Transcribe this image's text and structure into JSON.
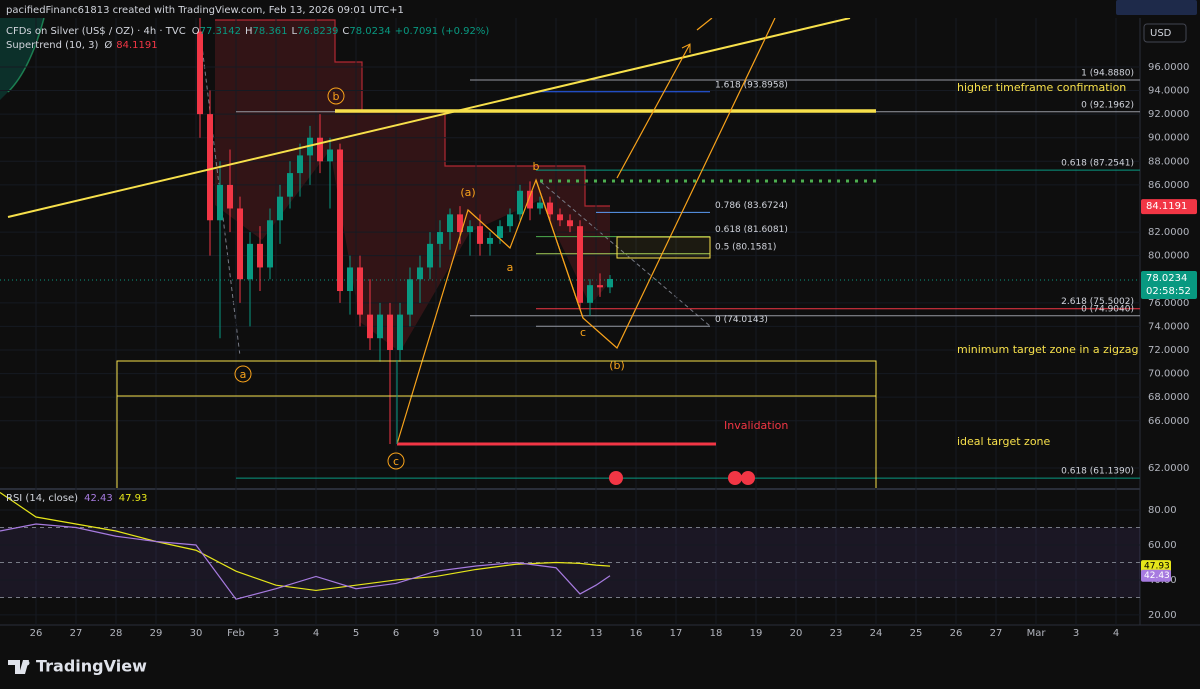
{
  "chart_data": {
    "type": "candlestick",
    "title": "pacifiedFinanc61813 created with TradingView.com, Feb 13, 2026 09:01 UTC+1",
    "symbol": "CFDs on Silver (US$ / OZ) · 4h · TVC",
    "ohlc_keys": [
      "O",
      "H",
      "L",
      "C"
    ],
    "change": "+0.7091 (+0.92%)",
    "currency": "USD",
    "supertrend": {
      "name": "Supertrend (10, 3)",
      "symbol": "Ø",
      "value": 84.1191,
      "value_label": "84.1191",
      "color": "#f23645"
    },
    "countdown": "02:58:52",
    "low": [
      90,
      80,
      73,
      82,
      76,
      74,
      77,
      78,
      81,
      84,
      85,
      86,
      87,
      84,
      76,
      75,
      74,
      72,
      71,
      64.035,
      71,
      74,
      76,
      78,
      79,
      80.5,
      81,
      80,
      80,
      80,
      81,
      82,
      83,
      83,
      83.5,
      83,
      82.5,
      82,
      75.5,
      74.9,
      76.5,
      76.8239
    ],
    "up_color": "#089981",
    "down_color": "#f23645",
    "x": [
      4.1,
      4.35,
      4.6,
      4.85,
      5.1,
      5.35,
      5.6,
      5.85,
      6.1,
      6.35,
      6.6,
      6.85,
      7.1,
      7.35,
      7.6,
      7.85,
      8.1,
      8.35,
      8.6,
      8.85,
      9.1,
      9.35,
      9.6,
      9.85,
      10.1,
      10.35,
      10.6,
      10.85,
      11.1,
      11.35,
      11.6,
      11.85,
      12.1,
      12.35,
      12.6,
      12.85,
      13.1,
      13.35,
      13.6,
      13.85,
      14.1,
      14.35
    ],
    "open": [
      99,
      92,
      83,
      86,
      84,
      78,
      81,
      79,
      83,
      85,
      87,
      88.5,
      90,
      88,
      89,
      77,
      79,
      75,
      73,
      75,
      72,
      75,
      78,
      79,
      81,
      82,
      83.5,
      82,
      82.5,
      81,
      81.5,
      82.5,
      83.5,
      85.5,
      84,
      84.5,
      83.5,
      83,
      82.5,
      76,
      77.5,
      77.3142
    ],
    "high": [
      101,
      94,
      88,
      89,
      85,
      82,
      82.5,
      84,
      86,
      88,
      89.5,
      91,
      92,
      90,
      89.5,
      80,
      80,
      78,
      76,
      76,
      76,
      79,
      80,
      82,
      83,
      84,
      84.2,
      83,
      83.5,
      82,
      83,
      84,
      86,
      86.3,
      85,
      85,
      84,
      83.5,
      83,
      78,
      78.5,
      78.361
    ],
    "close": [
      92,
      83,
      86,
      84,
      78,
      81,
      79,
      83,
      85,
      87,
      88.5,
      90,
      88,
      89,
      77,
      79,
      75,
      73,
      75,
      72,
      75,
      78,
      79,
      81,
      82,
      83.5,
      82,
      82.5,
      81,
      81.5,
      82.5,
      83.5,
      85.5,
      84,
      84.5,
      83.5,
      83,
      82.5,
      76,
      77.5,
      77.3142,
      78.0234
    ],
    "xlim": [
      -0.9,
      27.6
    ],
    "xticks": [
      {
        "value": 0,
        "label": "26"
      },
      {
        "value": 1,
        "label": "27"
      },
      {
        "value": 2,
        "label": "28"
      },
      {
        "value": 3,
        "label": "29"
      },
      {
        "value": 4,
        "label": "30"
      },
      {
        "value": 5,
        "label": "Feb"
      },
      {
        "value": 6,
        "label": "3"
      },
      {
        "value": 7,
        "label": "4"
      },
      {
        "value": 8,
        "label": "5"
      },
      {
        "value": 9,
        "label": "6"
      },
      {
        "value": 10,
        "label": "9"
      },
      {
        "value": 11,
        "label": "10"
      },
      {
        "value": 12,
        "label": "11"
      },
      {
        "value": 13,
        "label": "12"
      },
      {
        "value": 14,
        "label": "13"
      },
      {
        "value": 15,
        "label": "16"
      },
      {
        "value": 16,
        "label": "17"
      },
      {
        "value": 17,
        "label": "18"
      },
      {
        "value": 18,
        "label": "19"
      },
      {
        "value": 19,
        "label": "20"
      },
      {
        "value": 20,
        "label": "23"
      },
      {
        "value": 21,
        "label": "24"
      },
      {
        "value": 22,
        "label": "25"
      },
      {
        "value": 23,
        "label": "26"
      },
      {
        "value": 24,
        "label": "27"
      },
      {
        "value": 25,
        "label": "Mar"
      },
      {
        "value": 26,
        "label": "3"
      },
      {
        "value": 27,
        "label": "4"
      }
    ],
    "ylim": [
      60.3,
      100.15
    ],
    "yticks": [
      {
        "value": 96,
        "label": "96.0000"
      },
      {
        "value": 94,
        "label": "94.0000"
      },
      {
        "value": 92,
        "label": "92.0000"
      },
      {
        "value": 90,
        "label": "90.0000"
      },
      {
        "value": 88,
        "label": "88.0000"
      },
      {
        "value": 86,
        "label": "86.0000"
      },
      {
        "value": 82,
        "label": "82.0000"
      },
      {
        "value": 80,
        "label": "80.0000"
      },
      {
        "value": 76,
        "label": "76.0000"
      },
      {
        "value": 74,
        "label": "74.0000"
      },
      {
        "value": 72,
        "label": "72.0000"
      },
      {
        "value": 70,
        "label": "70.0000"
      },
      {
        "value": 68,
        "label": "68.0000"
      },
      {
        "value": 66,
        "label": "66.0000"
      },
      {
        "value": 62,
        "label": "62.0000"
      }
    ],
    "fib_levels": [
      {
        "label": "1 (94.8880)",
        "price": 94.888,
        "color": "#9598a1"
      },
      {
        "label": "1.618 (93.8958)",
        "price": 93.8958,
        "color": "#2962ff"
      },
      {
        "label": "0 (92.1962)",
        "price": 92.1962,
        "color": "#9598a1"
      },
      {
        "label": "0.618 (87.2541)",
        "price": 87.2541,
        "color": "#089981"
      },
      {
        "label": "0.786 (83.6724)",
        "price": 83.6724,
        "color": "#5b9cf6"
      },
      {
        "label": "0.618 (81.6081)",
        "price": 81.6081,
        "color": "#4caf50"
      },
      {
        "label": "0.5 (80.1581)",
        "price": 80.1581,
        "color": "#a5d15a"
      },
      {
        "label": "2.618 (75.5002)",
        "price": 75.5002,
        "color": "#f23645"
      },
      {
        "label": "0 (74.9040)",
        "price": 74.904,
        "color": "#9598a1"
      },
      {
        "label": "0 (74.0143)",
        "price": 74.0143,
        "color": "#9598a1"
      },
      {
        "label": "0.618 (61.1390)",
        "price": 61.139,
        "color": "#089981"
      }
    ],
    "annotations": [
      {
        "text": "higher timeframe confirmation",
        "color": "#f7e04b"
      },
      {
        "text": "minimum target zone in a zigzag",
        "color": "#f7e04b"
      },
      {
        "text": "ideal target zone",
        "color": "#f7e04b"
      },
      {
        "text": "Invalidation",
        "color": "#f23645"
      }
    ],
    "wave_labels": [
      "b",
      "a",
      "c",
      "(a)",
      "b",
      "a",
      "c",
      "(b)"
    ],
    "rsi": {
      "name": "RSI (14, close)",
      "color": "#a77be0",
      "ma_color": "#e6e61a",
      "x": [
        -0.9,
        0,
        1,
        2,
        3,
        4,
        5,
        6,
        7,
        8,
        9,
        10,
        11,
        12,
        13,
        13.6,
        14,
        14.35
      ],
      "values": [
        68,
        72,
        70,
        65,
        62,
        60,
        29,
        35,
        42,
        35,
        38,
        45,
        48,
        50,
        47,
        32,
        37,
        42.43
      ],
      "ma": [
        90,
        76,
        72,
        68,
        62,
        57,
        45,
        37,
        34,
        37,
        40,
        42,
        46,
        49,
        50,
        49.5,
        48.5,
        47.93
      ],
      "ylim": [
        13.1,
        90.3
      ],
      "yticks": [
        {
          "value": 80,
          "label": "80.00"
        },
        {
          "value": 60,
          "label": "60.00"
        },
        {
          "value": 40,
          "label": "40.00"
        },
        {
          "value": 20,
          "label": "20.00"
        }
      ],
      "bands": [
        70,
        50,
        30
      ]
    },
    "brand": "TradingView"
  }
}
